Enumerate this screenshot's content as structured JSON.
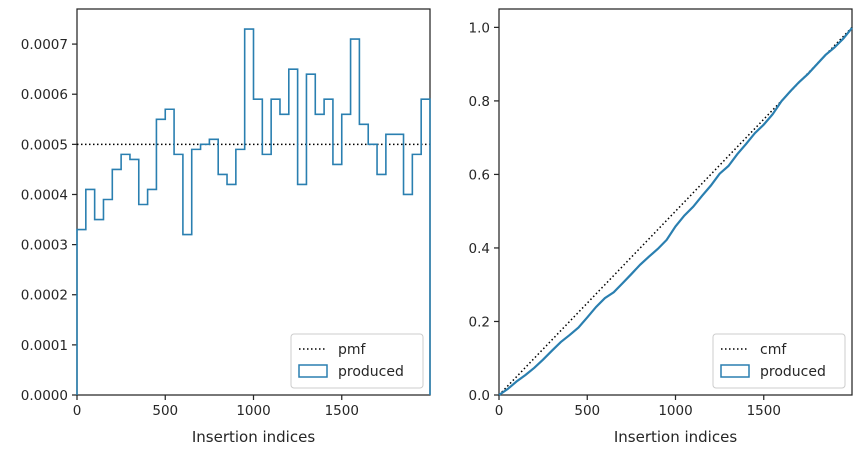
{
  "chart_data": [
    {
      "type": "histogram",
      "xlabel": "Insertion indices",
      "ylabel": "",
      "xlim": [
        0,
        2000
      ],
      "ylim": [
        0,
        0.00077
      ],
      "xticks": [
        0,
        500,
        1000,
        1500
      ],
      "xtick_labels": [
        "0",
        "500",
        "1000",
        "1500"
      ],
      "yticks": [
        0,
        0.0001,
        0.0002,
        0.0003,
        0.0004,
        0.0005,
        0.0006,
        0.0007
      ],
      "ytick_labels": [
        "0.0000",
        "0.0001",
        "0.0002",
        "0.0003",
        "0.0004",
        "0.0005",
        "0.0006",
        "0.0007"
      ],
      "legend": {
        "placement": "lower-right",
        "entries": [
          "pmf",
          "produced"
        ]
      },
      "series": [
        {
          "name": "pmf",
          "style": "dotted",
          "color": "#000000",
          "x": [
            0,
            2000
          ],
          "values": [
            0.0005,
            0.0005
          ]
        },
        {
          "name": "produced",
          "style": "step",
          "color": "#2a7fb0",
          "bin_edges": [
            0,
            50,
            100,
            150,
            200,
            250,
            300,
            350,
            400,
            450,
            500,
            550,
            600,
            650,
            700,
            750,
            800,
            850,
            900,
            950,
            1000,
            1050,
            1100,
            1150,
            1200,
            1250,
            1300,
            1350,
            1400,
            1450,
            1500,
            1550,
            1600,
            1650,
            1700,
            1750,
            1800,
            1850,
            1900,
            1950,
            2000
          ],
          "values": [
            0.00033,
            0.00041,
            0.00035,
            0.00039,
            0.00045,
            0.00048,
            0.00047,
            0.00038,
            0.00041,
            0.00055,
            0.00057,
            0.00048,
            0.00032,
            0.00049,
            0.0005,
            0.00051,
            0.00044,
            0.00042,
            0.00049,
            0.00073,
            0.00059,
            0.00048,
            0.00059,
            0.00056,
            0.00065,
            0.00042,
            0.00064,
            0.00056,
            0.00059,
            0.00046,
            0.00056,
            0.00071,
            0.00054,
            0.0005,
            0.00044,
            0.00052,
            0.00052,
            0.0004,
            0.00048,
            0.00059
          ]
        }
      ]
    },
    {
      "type": "line",
      "xlabel": "Insertion indices",
      "ylabel": "",
      "xlim": [
        0,
        2000
      ],
      "ylim": [
        0,
        1.05
      ],
      "xticks": [
        0,
        500,
        1000,
        1500
      ],
      "xtick_labels": [
        "0",
        "500",
        "1000",
        "1500"
      ],
      "yticks": [
        0,
        0.2,
        0.4,
        0.6,
        0.8,
        1.0
      ],
      "ytick_labels": [
        "0.0",
        "0.2",
        "0.4",
        "0.6",
        "0.8",
        "1.0"
      ],
      "legend": {
        "placement": "lower-right",
        "entries": [
          "cmf",
          "produced"
        ]
      },
      "series": [
        {
          "name": "cmf",
          "style": "dotted",
          "color": "#000000",
          "x": [
            0,
            2000
          ],
          "values": [
            0,
            1.0
          ]
        },
        {
          "name": "produced",
          "style": "line",
          "color": "#2a7fb0",
          "x": [
            0,
            50,
            100,
            150,
            200,
            250,
            300,
            350,
            400,
            450,
            500,
            550,
            600,
            650,
            700,
            750,
            800,
            850,
            900,
            950,
            1000,
            1050,
            1100,
            1150,
            1200,
            1250,
            1300,
            1350,
            1400,
            1450,
            1500,
            1550,
            1600,
            1650,
            1700,
            1750,
            1800,
            1850,
            1900,
            1950,
            2000
          ],
          "values": [
            0,
            0.0165,
            0.037,
            0.0545,
            0.074,
            0.0965,
            0.1205,
            0.144,
            0.163,
            0.1835,
            0.211,
            0.2395,
            0.2635,
            0.2795,
            0.304,
            0.329,
            0.3545,
            0.3765,
            0.3975,
            0.422,
            0.4585,
            0.488,
            0.512,
            0.5415,
            0.5695,
            0.602,
            0.623,
            0.655,
            0.683,
            0.7125,
            0.7355,
            0.7635,
            0.799,
            0.826,
            0.851,
            0.873,
            0.899,
            0.925,
            0.945,
            0.969,
            0.9985
          ]
        }
      ]
    }
  ]
}
